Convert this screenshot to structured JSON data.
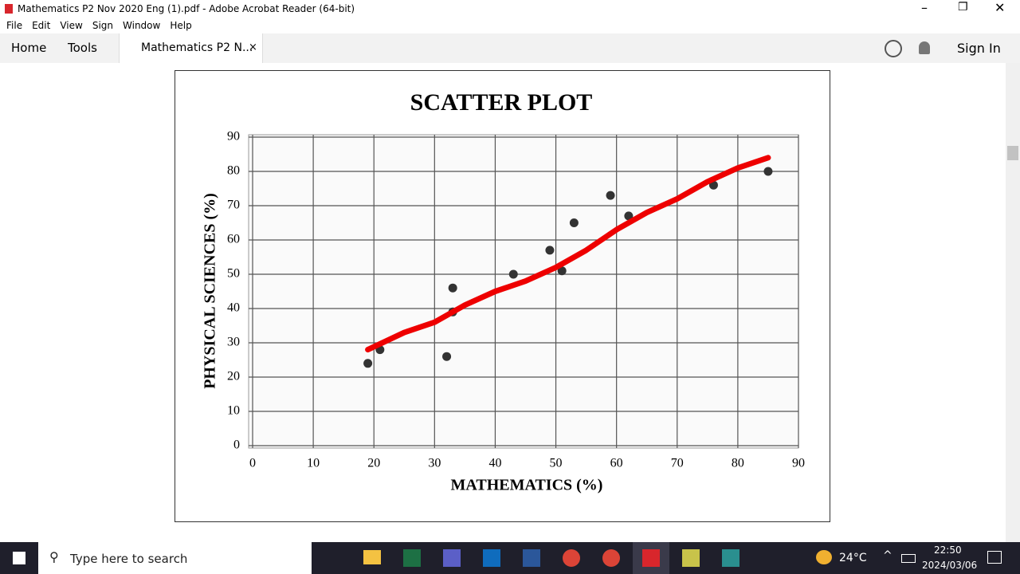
{
  "window": {
    "title": "Mathematics P2 Nov 2020 Eng (1).pdf - Adobe Acrobat Reader (64-bit)",
    "menu": [
      "File",
      "Edit",
      "View",
      "Sign",
      "Window",
      "Help"
    ],
    "tabs": {
      "home": "Home",
      "tools": "Tools",
      "document": "Mathematics P2 N...",
      "close": "×"
    },
    "sign_in": "Sign In"
  },
  "taskbar": {
    "search": "Type here to search",
    "temperature": "24°C",
    "time": "22:50",
    "date": "2024/03/06"
  },
  "chart_data": {
    "type": "scatter",
    "title": "SCATTER PLOT",
    "x_label": "MATHEMATICS (%)",
    "y_label": "PHYSICAL SCIENCES (%)",
    "xlim": [
      0,
      90
    ],
    "ylim": [
      0,
      90
    ],
    "xticks": [
      0,
      10,
      20,
      30,
      40,
      50,
      60,
      70,
      80,
      90
    ],
    "yticks": [
      0,
      10,
      20,
      30,
      40,
      50,
      60,
      70,
      80,
      90
    ],
    "grid": true,
    "series": [
      {
        "type": "scatter",
        "color": "#333333",
        "x": [
          19,
          21,
          32,
          33,
          33,
          43,
          49,
          51,
          53,
          59,
          62,
          76,
          85
        ],
        "values": [
          24,
          28,
          26,
          46,
          39,
          50,
          57,
          51,
          65,
          73,
          67,
          76,
          80
        ]
      },
      {
        "type": "line",
        "color": "#ee0000",
        "x": [
          19,
          25,
          30,
          35,
          40,
          45,
          50,
          55,
          60,
          65,
          70,
          75,
          80,
          85
        ],
        "values": [
          28,
          33,
          36,
          41,
          45,
          48,
          52,
          57,
          63,
          68,
          72,
          77,
          81,
          84
        ]
      }
    ]
  }
}
